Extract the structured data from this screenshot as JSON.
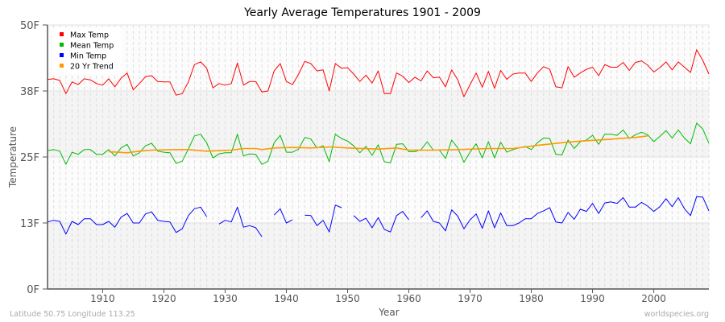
{
  "chart_data": {
    "type": "line",
    "title": "Yearly Average Temperatures 1901 - 2009",
    "xlabel": "Year",
    "ylabel": "Temperature",
    "xlim": [
      1901,
      2009
    ],
    "ylim": [
      0,
      50
    ],
    "y_ticks": [
      0,
      12.5,
      25,
      37.5,
      50
    ],
    "y_tick_labels": [
      "0F",
      "13F",
      "25F",
      "38F",
      "50F"
    ],
    "x_ticks": [
      1910,
      1920,
      1930,
      1940,
      1950,
      1960,
      1970,
      1980,
      1990,
      2000
    ],
    "x_tick_labels": [
      "1910",
      "1920",
      "1930",
      "1940",
      "1950",
      "1960",
      "1970",
      "1980",
      "1990",
      "2000"
    ],
    "grid": true,
    "legend_position": "top-left",
    "x_start": 1901,
    "series": [
      {
        "name": "Max Temp",
        "color": "#ff0000",
        "values": [
          39.7,
          39.8,
          39.5,
          37.0,
          39.2,
          38.7,
          39.8,
          39.6,
          38.9,
          38.6,
          39.8,
          38.3,
          39.9,
          40.9,
          37.7,
          38.9,
          40.2,
          40.4,
          39.3,
          39.2,
          39.2,
          36.7,
          37.0,
          39.2,
          42.5,
          43.0,
          41.8,
          38.1,
          38.9,
          38.6,
          38.9,
          42.8,
          38.6,
          39.3,
          39.3,
          37.3,
          37.5,
          41.3,
          42.7,
          39.3,
          38.7,
          40.7,
          43.1,
          42.7,
          41.3,
          41.5,
          37.5,
          42.7,
          41.8,
          41.9,
          40.7,
          39.3,
          40.5,
          39.0,
          41.3,
          37.0,
          37.0,
          40.9,
          40.3,
          39.1,
          40.1,
          39.4,
          41.3,
          40.0,
          40.1,
          38.3,
          41.5,
          39.6,
          36.4,
          38.7,
          40.9,
          38.2,
          41.2,
          38.0,
          41.4,
          39.7,
          40.7,
          40.9,
          40.9,
          39.3,
          40.9,
          42.1,
          41.6,
          38.3,
          38.1,
          42.1,
          40.1,
          40.9,
          41.6,
          42.0,
          40.4,
          42.5,
          42.0,
          42.0,
          42.9,
          41.4,
          42.9,
          43.2,
          42.4,
          41.1,
          41.9,
          43.0,
          41.5,
          43.0,
          42.0,
          41.0,
          45.3,
          43.3,
          40.7
        ]
      },
      {
        "name": "Mean Temp",
        "color": "#00bb00",
        "values": [
          26.2,
          26.4,
          26.1,
          23.6,
          25.9,
          25.5,
          26.4,
          26.4,
          25.5,
          25.5,
          26.4,
          25.2,
          26.7,
          27.4,
          25.2,
          25.8,
          27.1,
          27.6,
          26.1,
          25.9,
          25.8,
          23.8,
          24.2,
          26.5,
          29.0,
          29.3,
          27.7,
          24.8,
          25.6,
          25.8,
          25.8,
          29.3,
          25.2,
          25.6,
          25.5,
          23.6,
          24.2,
          27.7,
          29.1,
          25.9,
          25.9,
          26.5,
          28.7,
          28.4,
          26.7,
          27.1,
          24.1,
          29.3,
          28.5,
          28.0,
          27.1,
          25.8,
          27.0,
          25.3,
          27.3,
          24.1,
          23.9,
          27.4,
          27.5,
          26.0,
          26.0,
          26.4,
          27.9,
          26.3,
          26.3,
          24.7,
          28.2,
          26.7,
          24.0,
          25.9,
          27.5,
          24.8,
          27.9,
          24.8,
          27.8,
          25.9,
          26.4,
          26.7,
          27.0,
          26.4,
          27.7,
          28.6,
          28.5,
          25.5,
          25.4,
          28.2,
          26.6,
          27.9,
          28.2,
          29.1,
          27.4,
          29.3,
          29.3,
          29.1,
          30.1,
          28.5,
          29.2,
          29.7,
          29.2,
          27.9,
          28.9,
          30.0,
          28.6,
          30.1,
          28.6,
          27.5,
          31.4,
          30.3,
          27.6
        ]
      },
      {
        "name": "Min Temp",
        "color": "#0000ff",
        "values": [
          12.7,
          13.0,
          12.8,
          10.4,
          12.8,
          12.2,
          13.3,
          13.3,
          12.2,
          12.2,
          12.8,
          11.7,
          13.6,
          14.3,
          12.5,
          12.5,
          14.2,
          14.6,
          13.0,
          12.8,
          12.7,
          10.7,
          11.4,
          13.9,
          15.2,
          15.5,
          13.7,
          null,
          12.3,
          13.0,
          12.7,
          15.5,
          11.7,
          12.0,
          11.6,
          9.9,
          null,
          14.0,
          15.2,
          12.5,
          13.1,
          null,
          14.0,
          13.9,
          12.0,
          13.0,
          10.8,
          15.9,
          15.4,
          null,
          13.9,
          12.8,
          13.4,
          11.6,
          13.5,
          11.3,
          10.8,
          13.9,
          14.7,
          13.1,
          null,
          13.5,
          14.8,
          12.8,
          12.5,
          11.0,
          15.0,
          13.8,
          11.4,
          13.1,
          14.2,
          11.5,
          14.8,
          11.6,
          14.4,
          12.0,
          12.0,
          12.5,
          13.3,
          13.3,
          14.3,
          14.8,
          15.4,
          12.7,
          12.5,
          14.5,
          13.2,
          15.1,
          14.7,
          16.2,
          14.3,
          16.3,
          16.5,
          16.2,
          17.3,
          15.5,
          15.5,
          16.4,
          15.7,
          14.7,
          15.6,
          17.1,
          15.6,
          17.3,
          15.2,
          13.9,
          17.5,
          17.4,
          14.8
        ]
      },
      {
        "name": "20 Yr Trend",
        "color": "#ff9900",
        "x": [
          1911,
          1914,
          1916,
          1918,
          1922,
          1924,
          1927,
          1931,
          1933,
          1935,
          1936,
          1938,
          1941,
          1944,
          1947,
          1950,
          1955,
          1958,
          1960,
          1964,
          1968,
          1973,
          1977,
          1981,
          1985,
          1988,
          1992,
          1997,
          1999
        ],
        "values": [
          26.0,
          25.8,
          26.1,
          26.3,
          26.4,
          26.4,
          26.1,
          26.3,
          26.6,
          26.6,
          26.4,
          26.7,
          26.8,
          26.7,
          26.9,
          26.7,
          26.5,
          26.7,
          26.3,
          26.3,
          26.4,
          26.6,
          26.6,
          27.2,
          27.7,
          28.0,
          28.3,
          28.7,
          29.0
        ]
      }
    ]
  },
  "footer": {
    "location": "Latitude 50.75 Longitude 113.25",
    "site": "worldspecies.org"
  }
}
